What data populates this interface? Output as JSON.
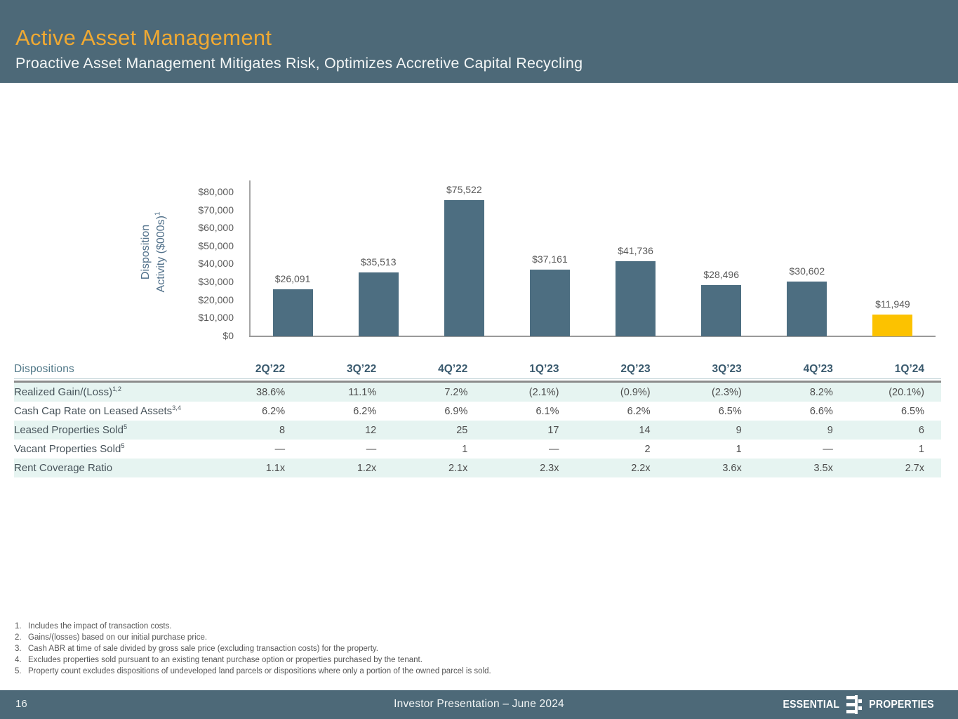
{
  "header": {
    "title": "Active Asset Management",
    "subtitle": "Proactive Asset Management Mitigates Risk, Optimizes Accretive Capital Recycling"
  },
  "colors": {
    "band": "#4d6978",
    "title_orange": "#f0a932",
    "bar_slate": "#4d6e81",
    "bar_gold": "#fcc200",
    "mint_row": "#e6f4f1"
  },
  "chart_data": {
    "type": "bar",
    "title": "",
    "ylabel_line1": "Disposition",
    "ylabel_line2": "Activity ($000s)",
    "ylabel_sup": "1",
    "categories": [
      "2Q’22",
      "3Q’22",
      "4Q’22",
      "1Q’23",
      "2Q’23",
      "3Q’23",
      "4Q’23",
      "1Q’24"
    ],
    "values": [
      26091,
      35513,
      75522,
      37161,
      41736,
      28496,
      30602,
      11949
    ],
    "labels": [
      "$26,091",
      "$35,513",
      "$75,522",
      "$37,161",
      "$41,736",
      "$28,496",
      "$30,602",
      "$11,949"
    ],
    "yticks": [
      "$80,000",
      "$70,000",
      "$60,000",
      "$50,000",
      "$40,000",
      "$30,000",
      "$20,000",
      "$10,000",
      "$0"
    ],
    "ylim": [
      0,
      80000
    ],
    "grid": false,
    "legend": "none",
    "highlight_last_bar_color": "#fcc200",
    "bar_color": "#4d6e81"
  },
  "table": {
    "title_col": "Dispositions",
    "columns": [
      "2Q’22",
      "3Q’22",
      "4Q’22",
      "1Q’23",
      "2Q’23",
      "3Q’23",
      "4Q’23",
      "1Q’24"
    ],
    "rows": [
      {
        "label": "Realized Gain/(Loss)",
        "sup": "1,2",
        "values": [
          "38.6%",
          "11.1%",
          "7.2%",
          "(2.1%)",
          "(0.9%)",
          "(2.3%)",
          "8.2%",
          "(20.1%)"
        ]
      },
      {
        "label": "Cash Cap Rate on Leased Assets",
        "sup": "3,4",
        "values": [
          "6.2%",
          "6.2%",
          "6.9%",
          "6.1%",
          "6.2%",
          "6.5%",
          "6.6%",
          "6.5%"
        ]
      },
      {
        "label": "Leased Properties Sold",
        "sup": "5",
        "values": [
          "8",
          "12",
          "25",
          "17",
          "14",
          "9",
          "9",
          "6"
        ]
      },
      {
        "label": "Vacant Properties Sold",
        "sup": "5",
        "values": [
          "—",
          "—",
          "1",
          "—",
          "2",
          "1",
          "—",
          "1"
        ]
      },
      {
        "label": "Rent Coverage Ratio",
        "sup": "",
        "values": [
          "1.1x",
          "1.2x",
          "2.1x",
          "2.3x",
          "2.2x",
          "3.6x",
          "3.5x",
          "2.7x"
        ]
      }
    ]
  },
  "footnotes": [
    {
      "num": "1.",
      "text": "Includes the impact of transaction costs."
    },
    {
      "num": "2.",
      "text": "Gains/(losses) based on our initial purchase price."
    },
    {
      "num": "3.",
      "text": "Cash ABR at time of sale divided by gross sale price (excluding transaction costs) for the property."
    },
    {
      "num": "4.",
      "text": "Excludes properties sold pursuant to an existing tenant purchase option or properties purchased by the tenant."
    },
    {
      "num": "5.",
      "text": "Property count excludes dispositions of undeveloped land parcels or dispositions where only a portion of the owned parcel is sold."
    }
  ],
  "footer": {
    "page": "16",
    "center": "Investor Presentation – June 2024",
    "brand_left": "ESSENTIAL",
    "brand_right": "PROPERTIES"
  }
}
